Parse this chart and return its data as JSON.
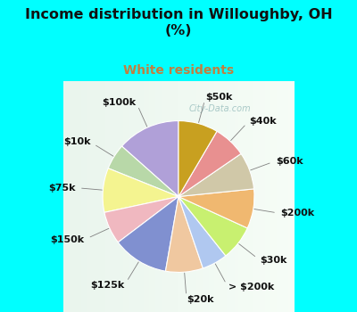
{
  "title": "Income distribution in Willoughby, OH\n(%)",
  "subtitle": "White residents",
  "title_color": "#111111",
  "subtitle_color": "#c08040",
  "background_top": "#00ffff",
  "background_chart_color": "#e0f0e8",
  "watermark": "City-Data.com",
  "slices": [
    {
      "label": "$100k",
      "value": 13.5,
      "color": "#b0a0d8"
    },
    {
      "label": "$10k",
      "value": 5.5,
      "color": "#b8d8a8"
    },
    {
      "label": "$75k",
      "value": 9.5,
      "color": "#f4f490"
    },
    {
      "label": "$150k",
      "value": 7.0,
      "color": "#f0b8c0"
    },
    {
      "label": "$125k",
      "value": 12.0,
      "color": "#8090d0"
    },
    {
      "label": "$20k",
      "value": 8.0,
      "color": "#f0c8a0"
    },
    {
      "label": "> $200k",
      "value": 5.5,
      "color": "#b0c8f0"
    },
    {
      "label": "$30k",
      "value": 7.5,
      "color": "#c8f070"
    },
    {
      "label": "$200k",
      "value": 8.5,
      "color": "#f0b870"
    },
    {
      "label": "$60k",
      "value": 8.0,
      "color": "#d0c8a8"
    },
    {
      "label": "$40k",
      "value": 7.0,
      "color": "#e89090"
    },
    {
      "label": "$50k",
      "value": 8.5,
      "color": "#c8a020"
    }
  ],
  "start_angle": 90,
  "label_fontsize": 8,
  "label_fontweight": "bold",
  "wedge_edge_color": "white",
  "wedge_linewidth": 0.8
}
